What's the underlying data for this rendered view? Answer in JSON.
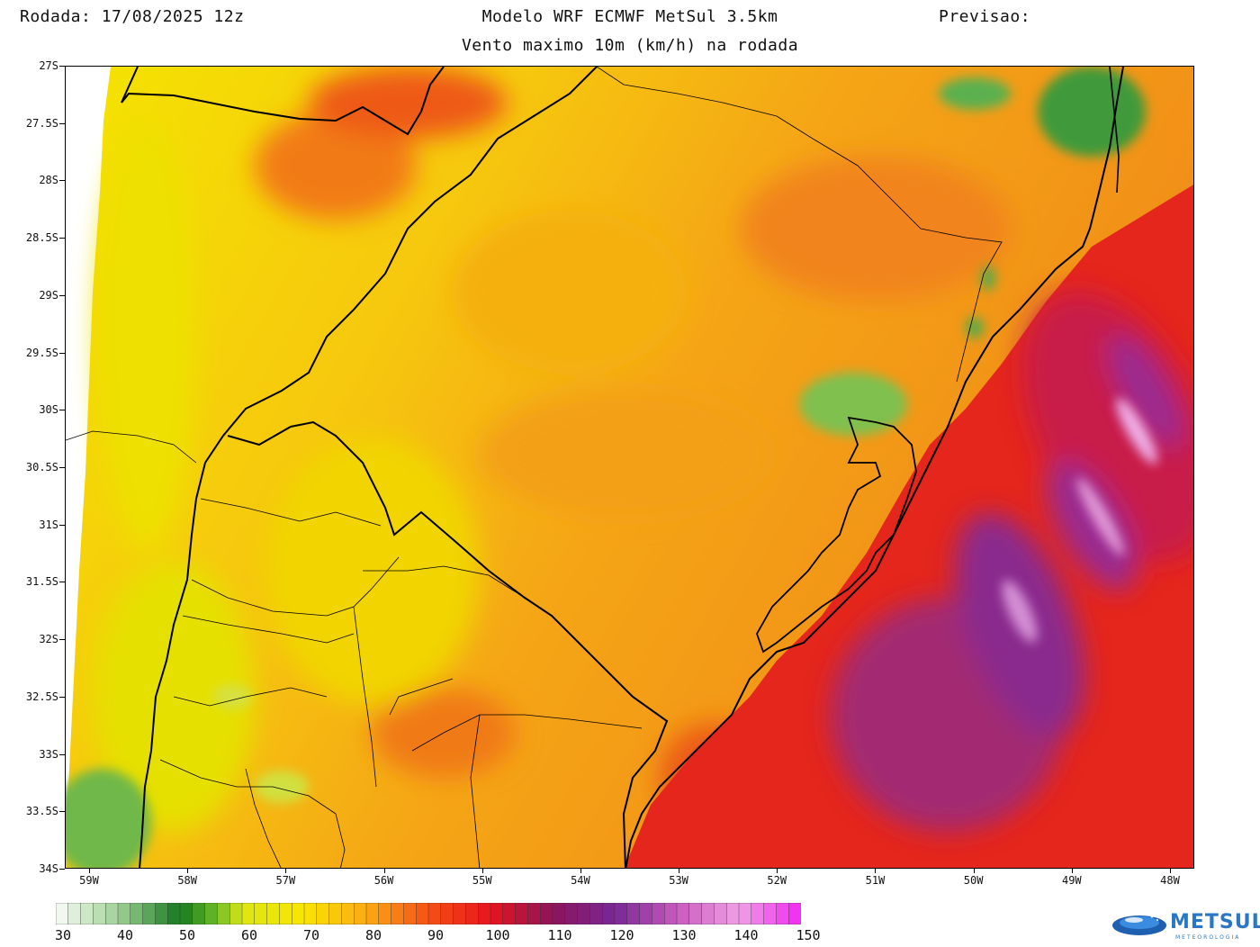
{
  "header": {
    "run_label": "Rodada: 17/08/2025 12z",
    "model_label": "Modelo WRF ECMWF MetSul 3.5km",
    "forecast_label": "Previsao:",
    "subtitle": "Vento maximo 10m (km/h) na rodada"
  },
  "map": {
    "latitudes": [
      "27S",
      "27.5S",
      "28S",
      "28.5S",
      "29S",
      "29.5S",
      "30S",
      "30.5S",
      "31S",
      "31.5S",
      "32S",
      "32.5S",
      "33S",
      "33.5S",
      "34S"
    ],
    "longitudes": [
      "59W",
      "58W",
      "57W",
      "56W",
      "55W",
      "54W",
      "53W",
      "52W",
      "51W",
      "50W",
      "49W",
      "48W"
    ],
    "colors": {
      "green": "#3f9a3a",
      "yellow": "#f2e200",
      "orange": "#f4a21a",
      "red": "#e8251c",
      "magenta": "#b2206a",
      "purple": "#7d2c9a",
      "pink": "#f1a8e6"
    }
  },
  "colorbar": {
    "labels": [
      "30",
      "40",
      "50",
      "60",
      "70",
      "80",
      "90",
      "100",
      "110",
      "120",
      "130",
      "140",
      "150"
    ],
    "min": 30,
    "max": 150,
    "step": 2,
    "unit": "km/h"
  },
  "logo": {
    "name": "METSUL",
    "tagline": "METEOROLOGIA"
  }
}
